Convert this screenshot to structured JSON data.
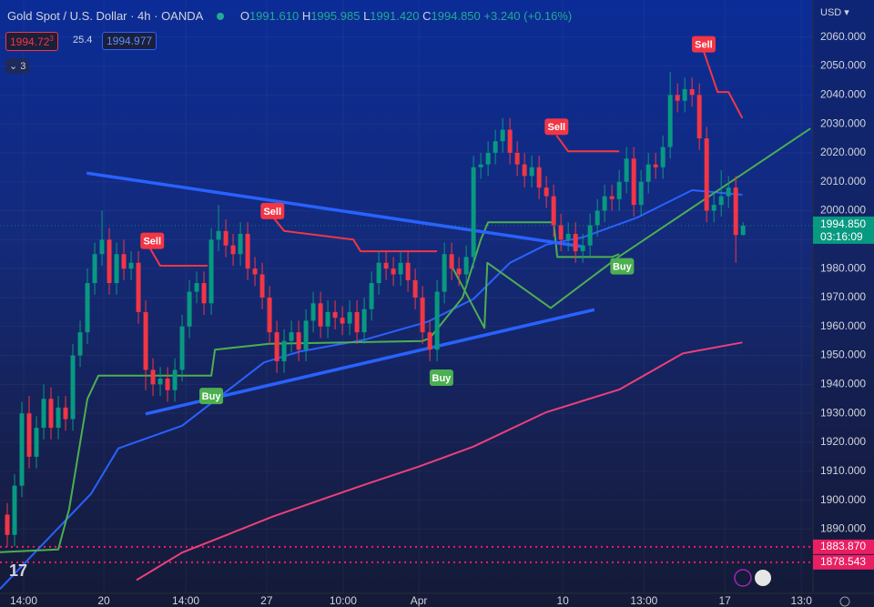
{
  "chart_data": {
    "type": "candlestick",
    "title": "Gold Spot / U.S. Dollar · 4h · OANDA",
    "header": {
      "o": "O",
      "open": "1991.610",
      "h": "H",
      "high": "1995.985",
      "l": "L",
      "low": "1991.420",
      "c": "C",
      "close": "1994.850",
      "change": "+3.240 (+0.16%)",
      "sell_price": "1994.72",
      "sell_price_sup": "3",
      "spread": "25.4",
      "buy_price": "1994.977",
      "indicators": "3",
      "currency": "USD"
    },
    "up_color": "#089981",
    "down_color": "#f23645",
    "xlim": [
      -1,
      110.6
    ],
    "ylim": [
      1867.8,
      2072.8
    ],
    "grid": true,
    "yticks": [
      {
        "value": 1890,
        "label": "1890.000"
      },
      {
        "value": 1900,
        "label": "1900.000"
      },
      {
        "value": 1910,
        "label": "1910.000"
      },
      {
        "value": 1920,
        "label": "1920.000"
      },
      {
        "value": 1930,
        "label": "1930.000"
      },
      {
        "value": 1940,
        "label": "1940.000"
      },
      {
        "value": 1950,
        "label": "1950.000"
      },
      {
        "value": 1960,
        "label": "1960.000"
      },
      {
        "value": 1970,
        "label": "1970.000"
      },
      {
        "value": 1980,
        "label": "1980.000"
      },
      {
        "value": 1990,
        "label": "1990.000"
      },
      {
        "value": 2000,
        "label": "2000.000"
      },
      {
        "value": 2010,
        "label": "2010.000"
      },
      {
        "value": 2020,
        "label": "2020.000"
      },
      {
        "value": 2030,
        "label": "2030.000"
      },
      {
        "value": 2040,
        "label": "2040.000"
      },
      {
        "value": 2050,
        "label": "2050.000"
      },
      {
        "value": 2060,
        "label": "2060.000"
      }
    ],
    "xticks": [
      {
        "value": 2.25,
        "label": "14:00"
      },
      {
        "value": 13.25,
        "label": "20"
      },
      {
        "value": 24.5,
        "label": "14:00"
      },
      {
        "value": 35.6,
        "label": "27"
      },
      {
        "value": 46.1,
        "label": "10:00"
      },
      {
        "value": 56.5,
        "label": "Apr"
      },
      {
        "value": 76.25,
        "label": "10"
      },
      {
        "value": 87.4,
        "label": "13:00"
      },
      {
        "value": 98.5,
        "label": "17"
      },
      {
        "value": 109,
        "label": "13:0"
      }
    ],
    "open": [
      1895,
      1888,
      1905,
      1930,
      1915,
      1925,
      1935,
      1925,
      1932,
      1928,
      1950,
      1958,
      1975,
      1985,
      1990,
      1975,
      1985,
      1980,
      1982,
      1965,
      1945,
      1940,
      1942,
      1938,
      1945,
      1960,
      1972,
      1975,
      1968,
      1990,
      1993,
      1988,
      1985,
      1992,
      1980,
      1978,
      1970,
      1958,
      1948,
      1955,
      1958,
      1952,
      1962,
      1968,
      1960,
      1965,
      1963,
      1961,
      1965,
      1958,
      1966,
      1975,
      1982,
      1980,
      1978,
      1982,
      1976,
      1970,
      1958,
      1952,
      1972,
      1985,
      1980,
      1978,
      1984,
      2015,
      2016,
      2020,
      2024,
      2028,
      2020,
      2016,
      2012,
      2015,
      2008,
      2005,
      1995,
      1990,
      1992,
      1986,
      1988,
      1995,
      2000,
      2005,
      2004,
      2010,
      2018,
      2002,
      2010,
      2016,
      2015,
      2022,
      2040,
      2038,
      2042,
      2040,
      2025,
      2000,
      2002,
      2005,
      2008,
      1991.61
    ],
    "high": [
      1899,
      1909,
      1934,
      1936,
      1929,
      1940,
      1939,
      1936,
      1936,
      1954,
      1962,
      1980,
      1989,
      2000,
      1994,
      1989,
      1990,
      1986,
      1986,
      1969,
      1949,
      1946,
      1946,
      1949,
      1964,
      1976,
      1979,
      1979,
      1994,
      2002,
      1997,
      1992,
      1996,
      1996,
      1984,
      1982,
      1974,
      1962,
      1959,
      1962,
      1962,
      1966,
      1972,
      1972,
      1969,
      1969,
      1967,
      1969,
      1969,
      1970,
      1979,
      1986,
      1986,
      1984,
      1986,
      1986,
      1980,
      1974,
      1962,
      1976,
      1989,
      1989,
      1984,
      1988,
      2019,
      2020,
      2024,
      2028,
      2032,
      2032,
      2024,
      2020,
      2019,
      2019,
      2012,
      2009,
      1999,
      1996,
      1996,
      1992,
      1999,
      2004,
      2009,
      2009,
      2014,
      2022,
      2022,
      2014,
      2020,
      2020,
      2026,
      2048,
      2044,
      2046,
      2046,
      2044,
      2029,
      2006,
      2014,
      2012,
      2012,
      1995.985
    ],
    "low": [
      1884,
      1884,
      1901,
      1911,
      1911,
      1921,
      1921,
      1921,
      1924,
      1924,
      1946,
      1954,
      1971,
      1981,
      1971,
      1971,
      1976,
      1976,
      1961,
      1938,
      1936,
      1936,
      1934,
      1934,
      1941,
      1956,
      1968,
      1964,
      1964,
      1986,
      1984,
      1981,
      1981,
      1976,
      1974,
      1966,
      1954,
      1944,
      1944,
      1951,
      1948,
      1948,
      1958,
      1956,
      1956,
      1959,
      1957,
      1957,
      1954,
      1954,
      1962,
      1971,
      1976,
      1974,
      1974,
      1972,
      1966,
      1954,
      1948,
      1948,
      1968,
      1976,
      1974,
      1974,
      1980,
      2011,
      2012,
      2016,
      2020,
      2016,
      2012,
      2008,
      2008,
      2004,
      2001,
      1991,
      1986,
      1986,
      1982,
      1982,
      1984,
      1991,
      1996,
      2000,
      2000,
      2006,
      1998,
      1998,
      2006,
      2011,
      2011,
      2018,
      2034,
      2034,
      2036,
      2021,
      1996,
      1996,
      1998,
      2001,
      1982,
      1991.42
    ],
    "close": [
      1888,
      1905,
      1930,
      1915,
      1925,
      1935,
      1925,
      1932,
      1928,
      1950,
      1958,
      1975,
      1985,
      1990,
      1975,
      1985,
      1980,
      1982,
      1965,
      1945,
      1940,
      1942,
      1938,
      1945,
      1960,
      1972,
      1975,
      1968,
      1990,
      1993,
      1988,
      1985,
      1992,
      1980,
      1978,
      1970,
      1958,
      1948,
      1955,
      1958,
      1952,
      1962,
      1968,
      1960,
      1965,
      1963,
      1961,
      1965,
      1958,
      1966,
      1975,
      1982,
      1980,
      1978,
      1982,
      1976,
      1970,
      1958,
      1952,
      1972,
      1985,
      1980,
      1978,
      1984,
      2015,
      2016,
      2020,
      2024,
      2028,
      2020,
      2016,
      2012,
      2015,
      2008,
      2005,
      1995,
      1990,
      1992,
      1986,
      1988,
      1995,
      2000,
      2005,
      2004,
      2010,
      2018,
      2002,
      2010,
      2016,
      2015,
      2022,
      2040,
      2038,
      2042,
      2040,
      2025,
      2000,
      2002,
      2005,
      2008,
      1991.61,
      1994.85
    ],
    "lines": [
      {
        "color": "#ec407a",
        "width": 2,
        "x": [
          17.75,
          24,
          30.25,
          36.5,
          49,
          56.5,
          64,
          74,
          84,
          92.75,
          100.9
        ],
        "values": [
          1872.4,
          1881.9,
          1888.1,
          1894.4,
          1905.3,
          1911.6,
          1918.5,
          1930.4,
          1938.2,
          1950.7,
          1954.5
        ]
      },
      {
        "color": "#2962ff",
        "width": 2,
        "x": [
          -1,
          11.5,
          15.25,
          24,
          35.25,
          40.25,
          49,
          57.75,
          64,
          69,
          74,
          79,
          86.5,
          94,
          100.9
        ],
        "values": [
          1869.3,
          1902.2,
          1917.9,
          1925.7,
          1947.6,
          1951.4,
          1955.4,
          1961.7,
          1969.5,
          1982,
          1988.3,
          1990.8,
          1997.7,
          2007.1,
          2005.5
        ]
      },
      {
        "color": "#4caf50",
        "width": 2,
        "x": [
          -1,
          7,
          8.5,
          11,
          12.5,
          28,
          28.5,
          36,
          57,
          58,
          62.5,
          65,
          66,
          75,
          75.5,
          83,
          84
        ],
        "values": [
          1882,
          1883,
          1897,
          1935,
          1943,
          1943,
          1952,
          1954,
          1955,
          1956,
          1970,
          1990,
          1996,
          1996,
          1984,
          1984,
          1985
        ]
      },
      {
        "color": "#f23645",
        "width": 2,
        "x": [
          19.6,
          21,
          27.5,
          null,
          36.4,
          38,
          47.5,
          48.5,
          59,
          null,
          75.4,
          77,
          84,
          null,
          95.6,
          97.5,
          99,
          100.9
        ],
        "values": [
          1987,
          1981,
          1981,
          null,
          1998,
          1993,
          1990,
          1986,
          1986,
          null,
          2026,
          2020.5,
          2020.5,
          null,
          2055,
          2041,
          2041,
          2032
        ]
      },
      {
        "color": "#2962ff",
        "width": 3.5,
        "x": [
          10.9,
          79
        ],
        "values": [
          2013,
          1987.6
        ]
      },
      {
        "color": "#2962ff",
        "width": 3.5,
        "x": [
          19,
          80.6
        ],
        "values": [
          1929.8,
          1965.8
        ]
      },
      {
        "color": "#4caf50",
        "width": 2,
        "x": [
          60.9,
          65.5,
          65.9,
          74.6,
          84,
          110.25
        ],
        "values": [
          1981.4,
          1959.5,
          1982,
          1966.4,
          1984.2,
          2028.4
        ]
      }
    ],
    "hlines": [
      {
        "value": 1883.87,
        "label": "1883.870",
        "color": "#e91e63"
      },
      {
        "value": 1878.543,
        "label": "1878.543",
        "color": "#e91e63"
      }
    ],
    "last_price": {
      "value": 1994.85,
      "label": "1994.850",
      "countdown": "03:16:09",
      "color": "#089981"
    },
    "signals": [
      {
        "text": "Sell",
        "x": 19.9,
        "value": 1989.6,
        "color": "#f23645"
      },
      {
        "text": "Sell",
        "x": 36.4,
        "value": 1999.9,
        "color": "#f23645"
      },
      {
        "text": "Sell",
        "x": 75.4,
        "value": 2029,
        "color": "#f23645"
      },
      {
        "text": "Sell",
        "x": 95.6,
        "value": 2057.5,
        "color": "#f23645"
      },
      {
        "text": "Buy",
        "x": 28,
        "value": 1936,
        "color": "#4caf50"
      },
      {
        "text": "Buy",
        "x": 59.6,
        "value": 1942.3,
        "color": "#4caf50"
      },
      {
        "text": "Buy",
        "x": 84.4,
        "value": 1980.8,
        "color": "#4caf50"
      }
    ]
  }
}
